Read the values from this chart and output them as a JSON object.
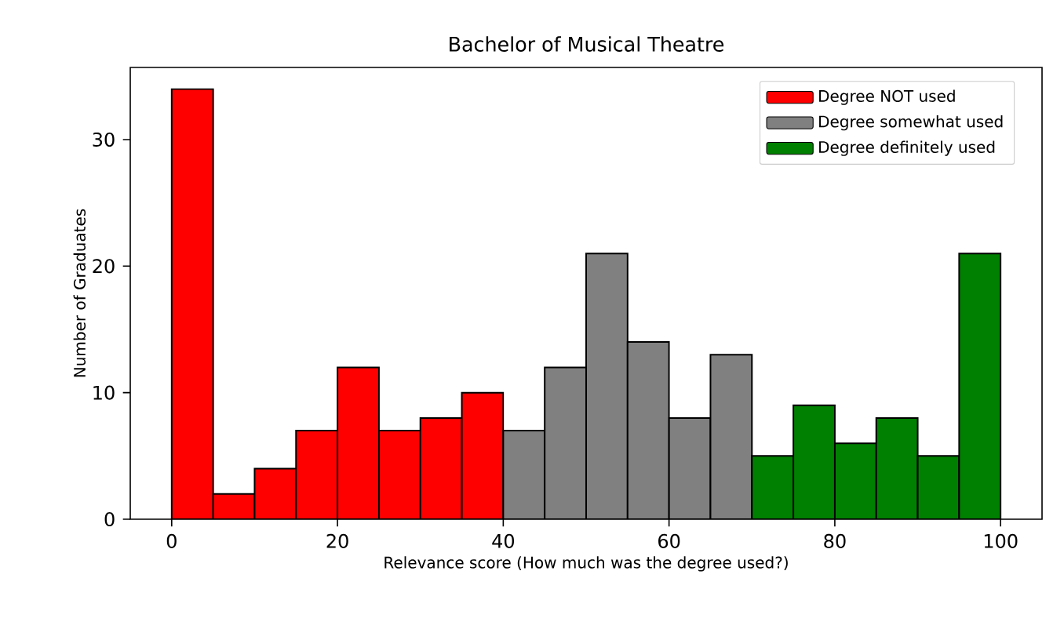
{
  "chart_data": {
    "type": "histogram",
    "title": "Bachelor of Musical Theatre",
    "xlabel": "Relevance score (How much was the degree used?)",
    "ylabel": "Number of Graduates",
    "bins": [
      0,
      5,
      10,
      15,
      20,
      25,
      30,
      35,
      40,
      45,
      50,
      55,
      60,
      65,
      70,
      75,
      80,
      85,
      90,
      95,
      100
    ],
    "series": [
      {
        "name": "Degree NOT used",
        "color": "#ff0000",
        "values": [
          34,
          2,
          4,
          7,
          12,
          7,
          8,
          10,
          null,
          null,
          null,
          null,
          null,
          null,
          null,
          null,
          null,
          null,
          null,
          null
        ]
      },
      {
        "name": "Degree somewhat used",
        "color": "#808080",
        "values": [
          null,
          null,
          null,
          null,
          null,
          null,
          null,
          null,
          7,
          12,
          21,
          14,
          8,
          13,
          null,
          null,
          null,
          null,
          null,
          null
        ]
      },
      {
        "name": "Degree definitely used",
        "color": "#008000",
        "values": [
          null,
          null,
          null,
          null,
          null,
          null,
          null,
          null,
          null,
          null,
          null,
          null,
          null,
          null,
          5,
          9,
          6,
          8,
          5,
          21
        ]
      }
    ],
    "xlim": [
      -5,
      105
    ],
    "ylim": [
      0,
      35.7
    ],
    "xticks": [
      0,
      20,
      40,
      60,
      80,
      100
    ],
    "yticks": [
      0,
      10,
      20,
      30
    ],
    "legend": "top right",
    "grid": false
  }
}
